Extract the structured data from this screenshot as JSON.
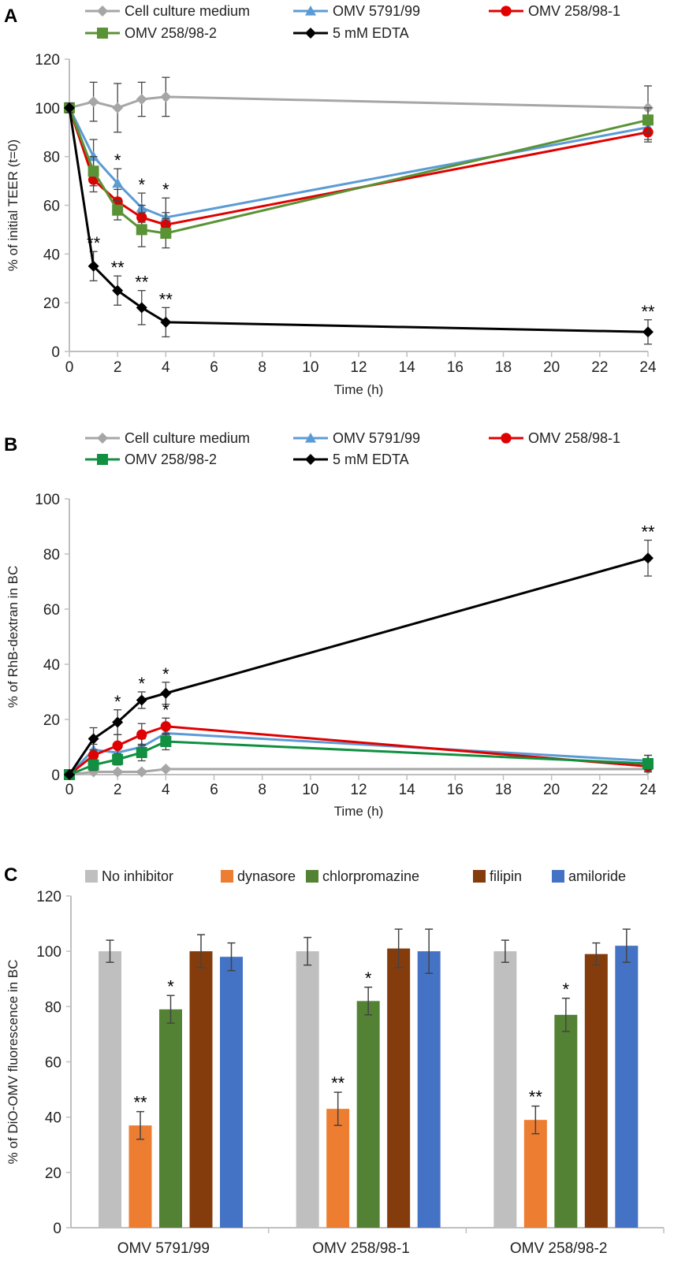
{
  "chart_data": [
    {
      "panel_label": "A",
      "type": "line",
      "xlabel": "Time (h)",
      "ylabel": "% of initial TEER (t=0)",
      "xlim": [
        0,
        24
      ],
      "ylim": [
        0,
        120
      ],
      "xticks": [
        0,
        2,
        4,
        6,
        8,
        10,
        12,
        14,
        16,
        18,
        20,
        22,
        24
      ],
      "yticks": [
        0,
        20,
        40,
        60,
        80,
        100,
        120
      ],
      "grid": false,
      "legend_position": "top",
      "x": [
        0,
        1,
        2,
        3,
        4,
        24
      ],
      "series": [
        {
          "name": "Cell culture medium",
          "color": "#a6a6a6",
          "marker": "diamond",
          "values": [
            100,
            102.5,
            100,
            103.5,
            104.5,
            100
          ],
          "errors": [
            2,
            8,
            10,
            7,
            8,
            9
          ]
        },
        {
          "name": "OMV 5791/99",
          "color": "#5b9bd5",
          "marker": "triangle",
          "values": [
            100,
            80,
            69,
            59,
            55,
            92
          ],
          "errors": [
            2,
            7,
            6,
            6,
            8,
            5
          ]
        },
        {
          "name": "OMV 258/98-1",
          "color": "#e00000",
          "marker": "circle",
          "values": [
            100,
            70.5,
            61.5,
            55,
            52,
            90
          ],
          "errors": [
            2,
            5,
            5,
            5,
            5,
            4
          ]
        },
        {
          "name": "OMV 258/98-2",
          "color": "#5a9236",
          "marker": "square",
          "values": [
            100,
            74,
            58,
            50,
            48.5,
            95
          ],
          "errors": [
            2,
            6,
            4,
            7,
            6,
            5
          ]
        },
        {
          "name": "5 mM EDTA",
          "color": "#000000",
          "marker": "diamond",
          "values": [
            100,
            35,
            25,
            18,
            12,
            8
          ],
          "errors": [
            2,
            6,
            6,
            7,
            6,
            5
          ]
        }
      ],
      "annotations": [
        {
          "series": 1,
          "x": 2,
          "label": "*"
        },
        {
          "series": 1,
          "x": 3,
          "label": "*"
        },
        {
          "series": 1,
          "x": 4,
          "label": "*"
        },
        {
          "series": 4,
          "x": 1,
          "label": "**"
        },
        {
          "series": 4,
          "x": 2,
          "label": "**"
        },
        {
          "series": 4,
          "x": 3,
          "label": "**"
        },
        {
          "series": 4,
          "x": 4,
          "label": "**"
        },
        {
          "series": 4,
          "x": 24,
          "label": "**"
        }
      ]
    },
    {
      "panel_label": "B",
      "type": "line",
      "xlabel": "Time (h)",
      "ylabel": "% of RhB-dextran in BC",
      "xlim": [
        0,
        24
      ],
      "ylim": [
        0,
        100
      ],
      "xticks": [
        0,
        2,
        4,
        6,
        8,
        10,
        12,
        14,
        16,
        18,
        20,
        22,
        24
      ],
      "yticks": [
        0,
        20,
        40,
        60,
        80,
        100
      ],
      "grid": false,
      "legend_position": "top",
      "x": [
        0,
        1,
        2,
        3,
        4,
        24
      ],
      "series": [
        {
          "name": "Cell culture medium",
          "color": "#a6a6a6",
          "marker": "diamond",
          "values": [
            0,
            1,
            1,
            1,
            2,
            2
          ],
          "errors": [
            0.5,
            0.5,
            0.5,
            0.5,
            0.5,
            0.5
          ]
        },
        {
          "name": "OMV 5791/99",
          "color": "#5b9bd5",
          "marker": "triangle",
          "values": [
            0,
            9,
            8,
            10,
            15,
            5
          ],
          "errors": [
            0.5,
            2,
            3,
            3,
            3,
            2
          ]
        },
        {
          "name": "OMV 258/98-1",
          "color": "#e00000",
          "marker": "circle",
          "values": [
            0,
            7,
            10.5,
            14.5,
            17.5,
            3
          ],
          "errors": [
            0.5,
            2,
            4,
            4,
            3,
            2
          ]
        },
        {
          "name": "OMV 258/98-2",
          "color": "#109040",
          "marker": "square",
          "values": [
            0,
            3.5,
            5.5,
            8,
            12,
            4
          ],
          "errors": [
            0.5,
            2,
            2,
            3,
            3,
            3
          ]
        },
        {
          "name": "5 mM EDTA",
          "color": "#000000",
          "marker": "diamond",
          "values": [
            0,
            13,
            19,
            27,
            29.5,
            78.5
          ],
          "errors": [
            0.5,
            4,
            4.5,
            3,
            4,
            6.5
          ]
        }
      ],
      "annotations": [
        {
          "series": 4,
          "x": 2,
          "label": "*"
        },
        {
          "series": 4,
          "x": 3,
          "label": "*"
        },
        {
          "series": 4,
          "x": 4,
          "label": "*"
        },
        {
          "series": 2,
          "x": 4,
          "label": "*"
        },
        {
          "series": 4,
          "x": 24,
          "label": "**"
        }
      ]
    },
    {
      "panel_label": "C",
      "type": "bar",
      "xlabel": "",
      "ylabel": "% of DiO-OMV fluorescence in BC",
      "ylim": [
        0,
        120
      ],
      "yticks": [
        0,
        20,
        40,
        60,
        80,
        100,
        120
      ],
      "grid": false,
      "legend_position": "top",
      "categories": [
        "OMV 5791/99",
        "OMV 258/98-1",
        "OMV 258/98-2"
      ],
      "series": [
        {
          "name": "No inhibitor",
          "color": "#bfbfbf",
          "values": [
            100,
            100,
            100
          ],
          "errors": [
            4,
            5,
            4
          ]
        },
        {
          "name": "dynasore",
          "color": "#ed7d31",
          "values": [
            37,
            43,
            39
          ],
          "errors": [
            5,
            6,
            5
          ]
        },
        {
          "name": "chlorpromazine",
          "color": "#548235",
          "values": [
            79,
            82,
            77
          ],
          "errors": [
            5,
            5,
            6
          ]
        },
        {
          "name": "filipin",
          "color": "#843c0c",
          "values": [
            100,
            101,
            99
          ],
          "errors": [
            6,
            7,
            4
          ]
        },
        {
          "name": "amiloride",
          "color": "#4472c4",
          "values": [
            98,
            100,
            102
          ],
          "errors": [
            5,
            8,
            6
          ]
        }
      ],
      "annotations": [
        {
          "series": 1,
          "category": 0,
          "label": "**"
        },
        {
          "series": 2,
          "category": 0,
          "label": "*"
        },
        {
          "series": 1,
          "category": 1,
          "label": "**"
        },
        {
          "series": 2,
          "category": 1,
          "label": "*"
        },
        {
          "series": 1,
          "category": 2,
          "label": "**"
        },
        {
          "series": 2,
          "category": 2,
          "label": "*"
        }
      ]
    }
  ]
}
